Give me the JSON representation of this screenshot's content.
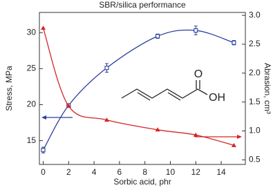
{
  "chart_data": {
    "type": "line",
    "title": "SBR/silica performance",
    "x_label": "Sorbic acid, phr",
    "y_label": "Stress, MPa",
    "y2_label": "Abrasion, cm³",
    "x": [
      0,
      2,
      5,
      9,
      12,
      15
    ],
    "xlim": [
      -0.3,
      15.9
    ],
    "xticks": [
      0,
      2,
      4,
      6,
      8,
      10,
      12,
      14
    ],
    "ylim": [
      11.7,
      32.8
    ],
    "yticks": [
      15,
      20,
      25,
      30
    ],
    "y2lim": [
      0.42,
      3.05
    ],
    "y2ticks": [
      {
        "value": 0.5,
        "label": "0.5"
      },
      {
        "value": 1.0,
        "label": "1.0"
      },
      {
        "value": 1.5,
        "label": "1.5"
      },
      {
        "value": 2.0,
        "label": "2.0"
      },
      {
        "value": 2.5,
        "label": "2.5"
      },
      {
        "value": 3.0,
        "label": "3.0"
      }
    ],
    "series": [
      {
        "color": "#2b3f9c",
        "values": [
          13.7,
          19.9,
          25.1,
          29.5,
          30.3,
          28.6
        ],
        "errors": [
          0.4,
          0.2,
          0.6,
          0.3,
          0.6,
          0.3
        ]
      },
      {
        "color": "#d42525",
        "axis": "y2",
        "values": [
          2.78,
          1.43,
          1.19,
          1.02,
          0.93,
          0.75
        ]
      }
    ],
    "annotations": [
      "O",
      "OH"
    ]
  }
}
